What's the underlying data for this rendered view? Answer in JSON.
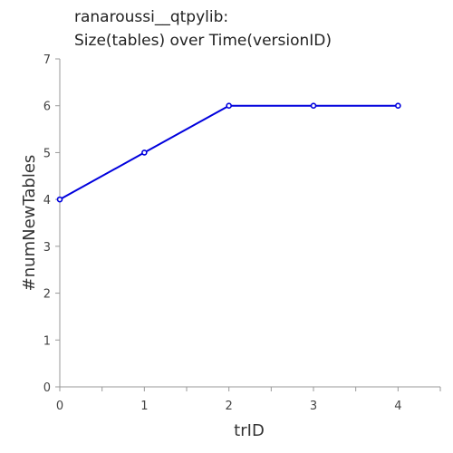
{
  "chart_data": {
    "type": "line",
    "title_lines": [
      "ranaroussi__qtpylib:",
      "Size(tables) over Time(versionID)"
    ],
    "xlabel": "trID",
    "ylabel": "#numNewTables",
    "x": [
      0,
      1,
      2,
      3,
      4
    ],
    "series": [
      {
        "values": [
          4,
          5,
          6,
          6,
          6
        ],
        "color": "#0000dd"
      }
    ],
    "xticks": [
      0,
      1,
      2,
      3,
      4
    ],
    "yticks": [
      0,
      1,
      2,
      3,
      4,
      5,
      6,
      7
    ],
    "xlim": [
      0,
      4.5
    ],
    "ylim": [
      0,
      7
    ],
    "grid": false,
    "legend": "none"
  }
}
